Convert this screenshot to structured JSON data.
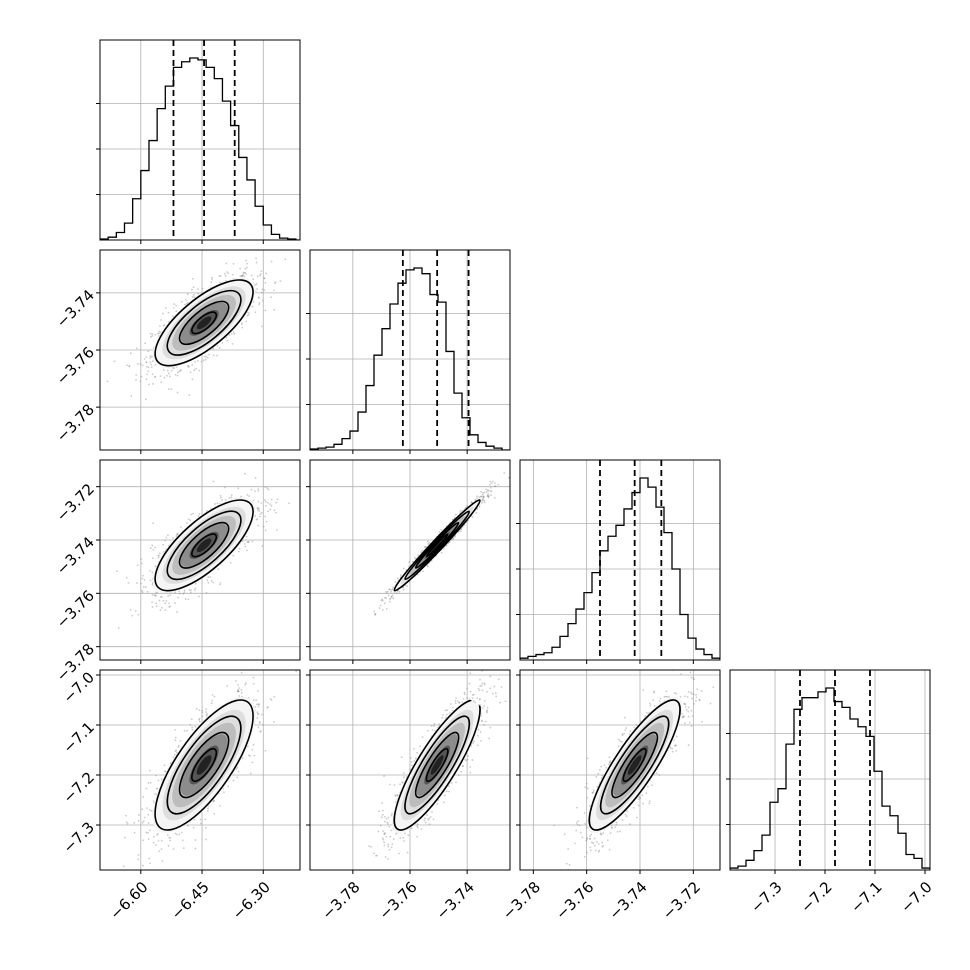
{
  "chart_data": {
    "type": "corner",
    "n_params": 4,
    "grid": true,
    "colors": {
      "line": "#000000",
      "grid": "#b0b0b0",
      "points": "#8c8c8c",
      "background": "#ffffff"
    },
    "params": [
      {
        "range": [
          -6.7,
          -6.21
        ],
        "ticks": [
          -6.6,
          -6.45,
          -6.3
        ],
        "tick_labels": [
          "−6.60",
          "−6.45",
          "−6.30"
        ],
        "quantiles": [
          -6.52,
          -6.445,
          -6.37
        ],
        "mean": -6.445,
        "sd": 0.06
      },
      {
        "range": [
          -3.795,
          -3.725
        ],
        "ticks": [
          -3.78,
          -3.76,
          -3.74
        ],
        "tick_labels": [
          "−3.78",
          "−3.76",
          "−3.74"
        ],
        "quantiles": [
          -3.7625,
          -3.7505,
          -3.7395
        ],
        "mean": -3.7505,
        "sd": 0.0075
      },
      {
        "range": [
          -3.785,
          -3.71
        ],
        "ticks": [
          -3.78,
          -3.76,
          -3.74,
          -3.72
        ],
        "tick_labels": [
          "−3.78",
          "−3.76",
          "−3.74",
          "−3.72"
        ],
        "quantiles": [
          -3.755,
          -3.742,
          -3.732
        ],
        "mean": -3.742,
        "sd": 0.0085
      },
      {
        "range": [
          -7.39,
          -6.99
        ],
        "ticks": [
          -7.3,
          -7.2,
          -7.1,
          -7.0
        ],
        "tick_labels": [
          "−7.3",
          "−7.2",
          "−7.1",
          "−7.0"
        ],
        "quantiles": [
          -7.25,
          -7.18,
          -7.11
        ],
        "mean": -7.18,
        "sd": 0.065
      }
    ],
    "correlations": {
      "1-0": 0.72,
      "2-0": 0.74,
      "2-1": 0.985,
      "3-0": 0.75,
      "3-1": 0.85,
      "3-2": 0.85
    },
    "histograms": [
      {
        "bins": [
          -6.7,
          -6.68,
          -6.66,
          -6.64,
          -6.62,
          -6.6,
          -6.58,
          -6.56,
          -6.54,
          -6.52,
          -6.5,
          -6.48,
          -6.46,
          -6.44,
          -6.42,
          -6.4,
          -6.38,
          -6.36,
          -6.34,
          -6.32,
          -6.3,
          -6.28,
          -6.26,
          -6.24,
          -6.22,
          -6.2
        ],
        "counts": [
          0.5,
          1.5,
          4,
          9,
          22,
          37,
          53,
          70,
          82,
          92,
          95,
          97,
          96,
          92,
          86,
          74,
          61,
          44,
          32,
          18,
          8,
          3,
          1,
          0.5,
          0
        ]
      },
      {
        "bins": [
          -3.795,
          -3.7922,
          -3.7894,
          -3.7866,
          -3.7838,
          -3.781,
          -3.7782,
          -3.7754,
          -3.7726,
          -3.7698,
          -3.767,
          -3.7642,
          -3.7614,
          -3.7586,
          -3.7558,
          -3.753,
          -3.7502,
          -3.7474,
          -3.7446,
          -3.7418,
          -3.739,
          -3.7362,
          -3.7334,
          -3.7306,
          -3.7278,
          -3.725
        ],
        "counts": [
          0.5,
          1,
          1.5,
          3,
          6,
          10,
          20,
          34,
          50,
          64,
          77,
          88,
          95,
          96,
          93,
          82,
          78,
          52,
          30,
          17,
          8,
          4,
          2,
          1,
          0
        ]
      },
      {
        "bins": [
          -3.785,
          -3.782,
          -3.779,
          -3.776,
          -3.773,
          -3.77,
          -3.767,
          -3.764,
          -3.761,
          -3.758,
          -3.755,
          -3.752,
          -3.749,
          -3.746,
          -3.743,
          -3.74,
          -3.737,
          -3.734,
          -3.731,
          -3.728,
          -3.725,
          -3.722,
          -3.719,
          -3.716,
          -3.713,
          -3.71
        ],
        "counts": [
          1,
          2,
          3,
          4,
          7,
          13,
          20,
          28,
          37,
          48,
          60,
          68,
          74,
          83,
          92,
          100,
          95,
          84,
          70,
          50,
          25,
          12,
          6,
          3,
          1
        ]
      },
      {
        "bins": [
          -7.39,
          -7.374,
          -7.358,
          -7.342,
          -7.326,
          -7.31,
          -7.294,
          -7.278,
          -7.262,
          -7.246,
          -7.23,
          -7.214,
          -7.198,
          -7.182,
          -7.166,
          -7.15,
          -7.134,
          -7.118,
          -7.102,
          -7.086,
          -7.07,
          -7.054,
          -7.038,
          -7.022,
          -7.006,
          -6.99
        ],
        "counts": [
          1,
          2,
          5,
          10,
          18,
          35,
          42,
          65,
          83,
          89,
          89,
          92,
          94,
          87,
          84,
          78,
          74,
          69,
          51,
          33,
          28,
          19,
          8,
          6,
          1
        ]
      }
    ],
    "contour_levels_sigma": [
      0.5,
      1.0,
      1.5,
      2.0
    ]
  }
}
